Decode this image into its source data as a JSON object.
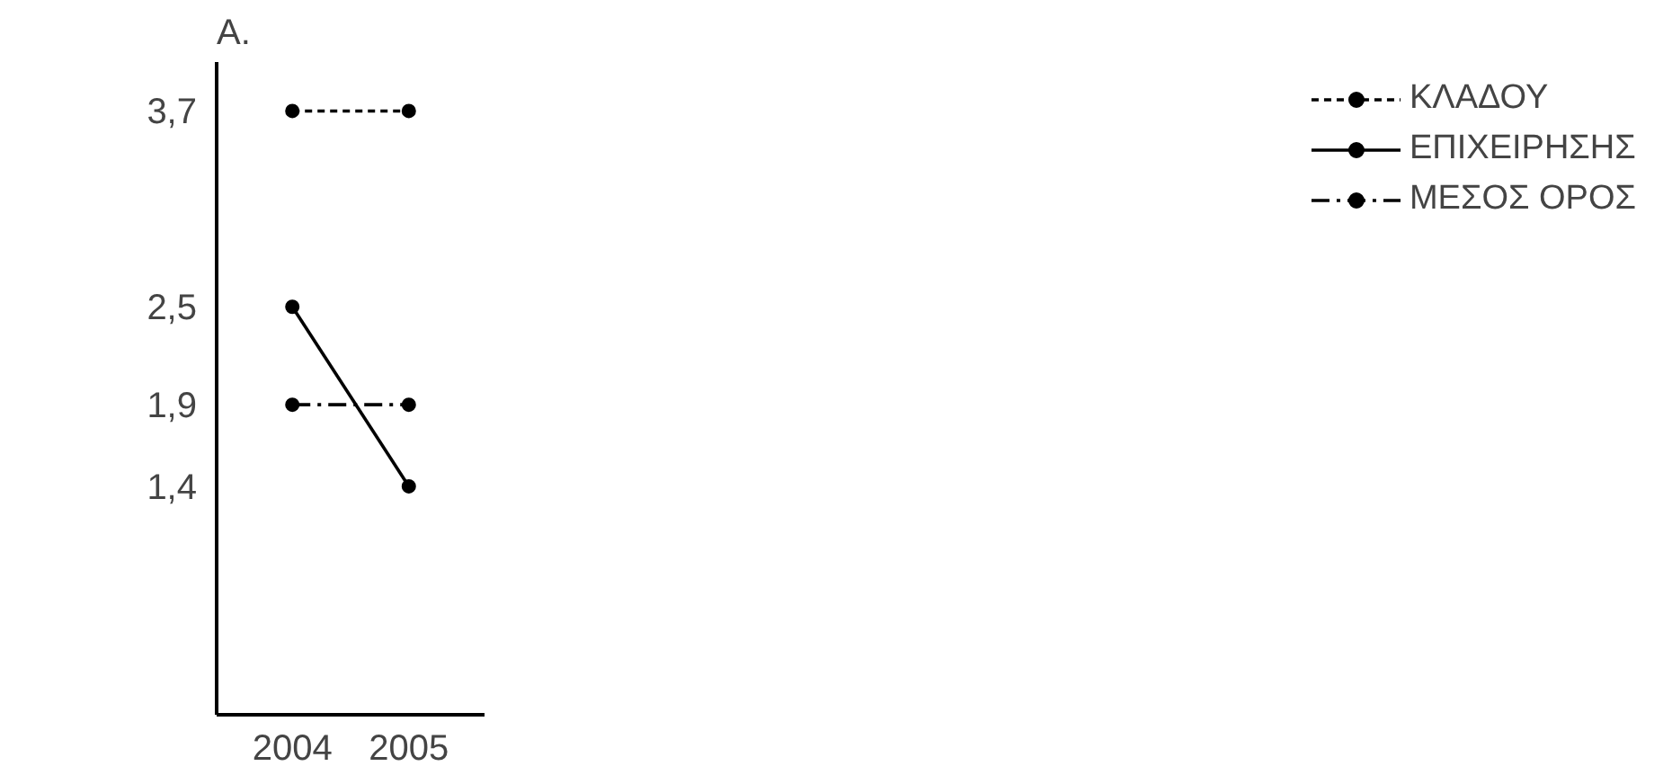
{
  "chart_data": {
    "type": "line",
    "annotations": [
      "A."
    ],
    "x": [
      2004,
      2005
    ],
    "xlim": [
      2003.35,
      2005.65
    ],
    "xticks": [
      2004,
      2005
    ],
    "ylim": [
      0,
      4
    ],
    "yticks": [
      {
        "value": 1.4,
        "label": "1,4"
      },
      {
        "value": 1.9,
        "label": "1,9"
      },
      {
        "value": 2.5,
        "label": "2,5"
      },
      {
        "value": 3.7,
        "label": "3,7"
      }
    ],
    "series": [
      {
        "name": "ΚΛΑΔΟΥ",
        "color": "#000000",
        "values": [
          3.7,
          3.7
        ],
        "line_style": "dashed"
      },
      {
        "name": "ΕΠΙΧΕΙΡΗΣΗΣ",
        "color": "#000000",
        "values": [
          2.5,
          1.4
        ],
        "line_style": "solid"
      },
      {
        "name": "ΜΕΣΟΣ ΟΡΟΣ",
        "color": "#000000",
        "values": [
          1.9,
          1.9
        ],
        "line_style": "dashdot"
      }
    ],
    "marker": "circle",
    "grid": false,
    "legend": "right"
  }
}
